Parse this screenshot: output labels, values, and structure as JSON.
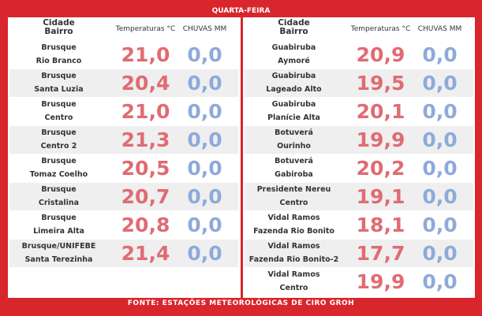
{
  "title": "QUARTA-FEIRA",
  "footer": "FONTE: ESTAÇÕES METEOROLÓGICAS DE CIRO GROH",
  "tables": [
    {
      "headers": {
        "place": [
          "Cidade",
          "Bairro"
        ],
        "temp": "Temperaturas °C",
        "rain": "CHUVAS MM"
      },
      "rows": [
        {
          "city": "Brusque",
          "district": "Rio Branco",
          "temp": "21,0",
          "rain": "0,0"
        },
        {
          "city": "Brusque",
          "district": "Santa Luzia",
          "temp": "20,4",
          "rain": "0,0"
        },
        {
          "city": "Brusque",
          "district": "Centro",
          "temp": "21,0",
          "rain": "0,0"
        },
        {
          "city": "Brusque",
          "district": "Centro 2",
          "temp": "21,3",
          "rain": "0,0"
        },
        {
          "city": "Brusque",
          "district": "Tomaz Coelho",
          "temp": "20,5",
          "rain": "0,0"
        },
        {
          "city": "Brusque",
          "district": "Cristalina",
          "temp": "20,7",
          "rain": "0,0"
        },
        {
          "city": "Brusque",
          "district": "Limeira Alta",
          "temp": "20,8",
          "rain": "0,0"
        },
        {
          "city": "Brusque/UNIFEBE",
          "district": "Santa Terezinha",
          "temp": "21,4",
          "rain": "0,0"
        }
      ]
    },
    {
      "headers": {
        "place": [
          "Cidade",
          "Bairro"
        ],
        "temp": "Temperaturas °C",
        "rain": "CHUVAS MM"
      },
      "rows": [
        {
          "city": "Guabiruba",
          "district": "Aymoré",
          "temp": "20,9",
          "rain": "0,0"
        },
        {
          "city": "Guabiruba",
          "district": "Lageado Alto",
          "temp": "19,5",
          "rain": "0,0"
        },
        {
          "city": "Guabiruba",
          "district": "Planície Alta",
          "temp": "20,1",
          "rain": "0,0"
        },
        {
          "city": "Botuverá",
          "district": "Ourinho",
          "temp": "19,9",
          "rain": "0,0"
        },
        {
          "city": "Botuverá",
          "district": "Gabiroba",
          "temp": "20,2",
          "rain": "0,0"
        },
        {
          "city": "Presidente Nereu",
          "district": "Centro",
          "temp": "19,1",
          "rain": "0,0"
        },
        {
          "city": "Vidal Ramos",
          "district": "Fazenda Rio Bonito",
          "temp": "18,1",
          "rain": "0,0"
        },
        {
          "city": "Vidal Ramos",
          "district": "Fazenda Rio Bonito-2",
          "temp": "17,7",
          "rain": "0,0"
        },
        {
          "city": "Vidal Ramos",
          "district": "Centro",
          "temp": "19,9",
          "rain": "0,0"
        }
      ]
    }
  ]
}
